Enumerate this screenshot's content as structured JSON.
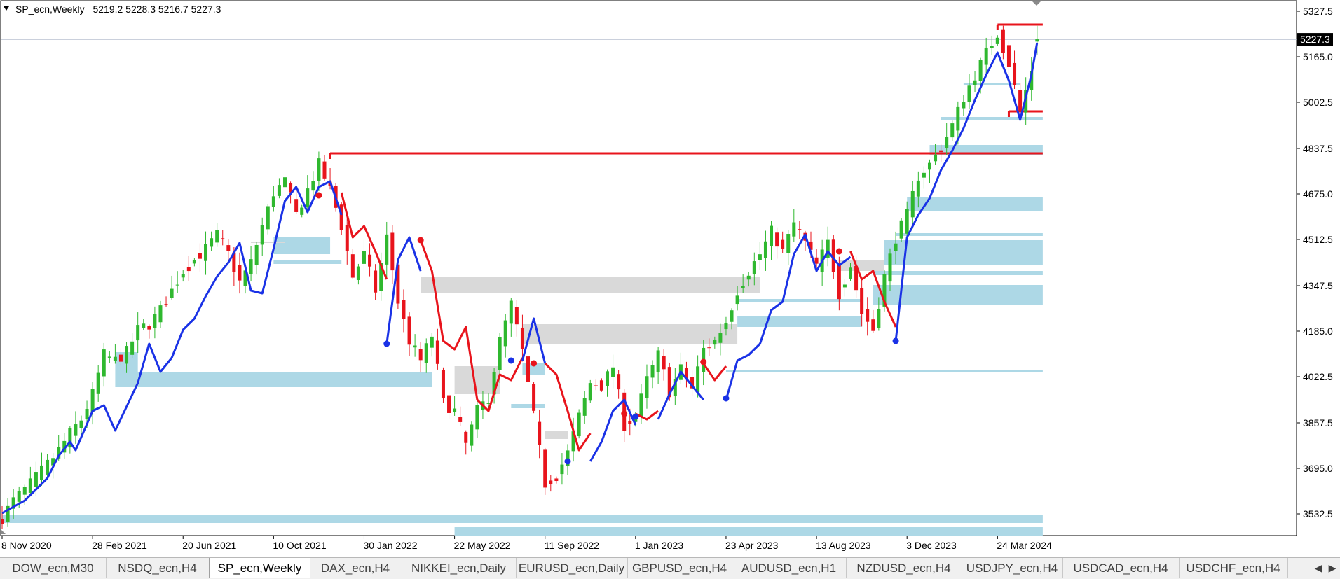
{
  "header": {
    "symbol_label": "SP_ecn,Weekly",
    "ohlc": "5219.2 5228.3 5216.7 5227.3"
  },
  "chart_data": {
    "type": "candlestick",
    "symbol": "SP_ecn",
    "timeframe": "Weekly",
    "ohlc_current": {
      "open": 5219.2,
      "high": 5228.3,
      "low": 5216.7,
      "close": 5227.3
    },
    "current_price_label": "5227.3",
    "ylim": [
      3455,
      5365
    ],
    "y_ticks": [
      5327.5,
      5165.0,
      5002.5,
      4837.5,
      4675.0,
      4512.5,
      4347.5,
      4185.0,
      4022.5,
      3857.5,
      3695.0,
      3532.5
    ],
    "y_tick_labels": [
      "5327.5",
      "5165.0",
      "5002.5",
      "4837.5",
      "4675.0",
      "4512.5",
      "4347.5",
      "4185.0",
      "4022.5",
      "3857.5",
      "3695.0",
      "3532.5"
    ],
    "x_tick_labels": [
      "8 Nov 2020",
      "28 Feb 2021",
      "20 Jun 2021",
      "10 Oct 2021",
      "30 Jan 2022",
      "22 May 2022",
      "11 Sep 2022",
      "1 Jan 2023",
      "23 Apr 2023",
      "13 Aug 2023",
      "3 Dec 2023",
      "24 Mar 2024"
    ],
    "x_tick_bar_index": [
      0,
      16,
      32,
      48,
      64,
      80,
      96,
      112,
      128,
      144,
      160,
      176
    ],
    "bar_count": 184,
    "grid": false,
    "colors": {
      "bull": "#2fb82f",
      "bear": "#e8141c",
      "line_up": "#1a32e6",
      "line_down": "#e8141c",
      "zone_blue": "#add8e6",
      "zone_gray": "#d9d9d9",
      "level_line": "#e8141c",
      "price_line": "#aab4c8"
    },
    "close_anchors": [
      [
        0,
        3520
      ],
      [
        2,
        3580
      ],
      [
        5,
        3640
      ],
      [
        8,
        3710
      ],
      [
        10,
        3760
      ],
      [
        12,
        3820
      ],
      [
        14,
        3870
      ],
      [
        16,
        3960
      ],
      [
        18,
        4100
      ],
      [
        20,
        4080
      ],
      [
        22,
        4110
      ],
      [
        24,
        4190
      ],
      [
        26,
        4210
      ],
      [
        28,
        4260
      ],
      [
        30,
        4330
      ],
      [
        32,
        4400
      ],
      [
        34,
        4440
      ],
      [
        36,
        4480
      ],
      [
        38,
        4530
      ],
      [
        40,
        4460
      ],
      [
        42,
        4360
      ],
      [
        44,
        4430
      ],
      [
        46,
        4560
      ],
      [
        48,
        4680
      ],
      [
        50,
        4720
      ],
      [
        52,
        4600
      ],
      [
        54,
        4690
      ],
      [
        56,
        4780
      ],
      [
        58,
        4690
      ],
      [
        60,
        4560
      ],
      [
        62,
        4380
      ],
      [
        64,
        4460
      ],
      [
        66,
        4330
      ],
      [
        68,
        4520
      ],
      [
        70,
        4290
      ],
      [
        72,
        4150
      ],
      [
        74,
        4080
      ],
      [
        76,
        4170
      ],
      [
        78,
        3930
      ],
      [
        80,
        3900
      ],
      [
        82,
        3780
      ],
      [
        84,
        3900
      ],
      [
        86,
        3950
      ],
      [
        88,
        4150
      ],
      [
        90,
        4280
      ],
      [
        92,
        4110
      ],
      [
        94,
        3880
      ],
      [
        96,
        3640
      ],
      [
        98,
        3670
      ],
      [
        100,
        3750
      ],
      [
        102,
        3880
      ],
      [
        104,
        4000
      ],
      [
        106,
        3990
      ],
      [
        108,
        4060
      ],
      [
        110,
        3850
      ],
      [
        112,
        3880
      ],
      [
        114,
        4010
      ],
      [
        116,
        4100
      ],
      [
        118,
        3970
      ],
      [
        120,
        4050
      ],
      [
        122,
        3980
      ],
      [
        124,
        4120
      ],
      [
        126,
        4150
      ],
      [
        128,
        4220
      ],
      [
        130,
        4330
      ],
      [
        132,
        4400
      ],
      [
        134,
        4460
      ],
      [
        136,
        4540
      ],
      [
        138,
        4470
      ],
      [
        140,
        4570
      ],
      [
        142,
        4500
      ],
      [
        144,
        4420
      ],
      [
        146,
        4500
      ],
      [
        148,
        4320
      ],
      [
        150,
        4420
      ],
      [
        152,
        4250
      ],
      [
        154,
        4190
      ],
      [
        156,
        4380
      ],
      [
        158,
        4520
      ],
      [
        160,
        4600
      ],
      [
        162,
        4740
      ],
      [
        164,
        4780
      ],
      [
        166,
        4840
      ],
      [
        168,
        4920
      ],
      [
        170,
        5020
      ],
      [
        172,
        5100
      ],
      [
        174,
        5180
      ],
      [
        176,
        5250
      ],
      [
        178,
        5140
      ],
      [
        180,
        4970
      ],
      [
        182,
        5120
      ],
      [
        183,
        5227.3
      ]
    ],
    "trend_line_segments": [
      {
        "color": "up",
        "points": [
          [
            0,
            3535
          ],
          [
            4,
            3580
          ],
          [
            8,
            3660
          ],
          [
            10,
            3740
          ],
          [
            12,
            3790
          ],
          [
            13,
            3760
          ],
          [
            16,
            3900
          ],
          [
            18,
            3920
          ],
          [
            20,
            3830
          ],
          [
            24,
            4000
          ],
          [
            26,
            4140
          ],
          [
            28,
            4040
          ],
          [
            30,
            4090
          ],
          [
            32,
            4190
          ],
          [
            34,
            4230
          ],
          [
            36,
            4310
          ],
          [
            38,
            4380
          ],
          [
            40,
            4430
          ],
          [
            42,
            4500
          ],
          [
            44,
            4330
          ],
          [
            46,
            4320
          ],
          [
            48,
            4480
          ],
          [
            50,
            4650
          ],
          [
            52,
            4700
          ],
          [
            54,
            4610
          ],
          [
            56,
            4700
          ],
          [
            58,
            4720
          ],
          [
            60,
            4600
          ]
        ]
      },
      {
        "color": "down",
        "points": [
          [
            60,
            4680
          ],
          [
            62,
            4520
          ],
          [
            64,
            4560
          ],
          [
            66,
            4470
          ],
          [
            68,
            4370
          ]
        ]
      },
      {
        "color": "up",
        "points": [
          [
            68,
            4140
          ],
          [
            70,
            4440
          ],
          [
            72,
            4520
          ],
          [
            74,
            4400
          ]
        ]
      },
      {
        "color": "down",
        "points": [
          [
            74,
            4510
          ],
          [
            76,
            4400
          ],
          [
            78,
            4150
          ],
          [
            80,
            4120
          ],
          [
            82,
            4200
          ],
          [
            84,
            3940
          ],
          [
            86,
            3900
          ],
          [
            88,
            4030
          ],
          [
            90,
            4010
          ],
          [
            92,
            4090
          ]
        ]
      },
      {
        "color": "up",
        "points": [
          [
            92,
            4080
          ],
          [
            94,
            4230
          ],
          [
            96,
            4070
          ]
        ]
      },
      {
        "color": "down",
        "points": [
          [
            96,
            4070
          ],
          [
            98,
            4030
          ],
          [
            100,
            3900
          ],
          [
            102,
            3760
          ],
          [
            104,
            3820
          ]
        ]
      },
      {
        "color": "up",
        "points": [
          [
            104,
            3720
          ],
          [
            106,
            3790
          ],
          [
            108,
            3900
          ],
          [
            110,
            3940
          ],
          [
            112,
            3850
          ]
        ]
      },
      {
        "color": "down",
        "points": [
          [
            112,
            3890
          ],
          [
            114,
            3870
          ],
          [
            116,
            3900
          ]
        ]
      },
      {
        "color": "up",
        "points": [
          [
            116,
            3870
          ],
          [
            118,
            3960
          ],
          [
            120,
            4040
          ],
          [
            122,
            3990
          ],
          [
            124,
            3940
          ]
        ]
      },
      {
        "color": "down",
        "points": [
          [
            124,
            4070
          ],
          [
            126,
            4010
          ],
          [
            128,
            4060
          ]
        ]
      },
      {
        "color": "up",
        "points": [
          [
            128,
            3940
          ],
          [
            130,
            4080
          ],
          [
            132,
            4100
          ],
          [
            134,
            4140
          ],
          [
            136,
            4260
          ],
          [
            138,
            4290
          ],
          [
            140,
            4460
          ],
          [
            142,
            4530
          ],
          [
            144,
            4400
          ],
          [
            146,
            4470
          ],
          [
            148,
            4420
          ],
          [
            150,
            4450
          ]
        ]
      },
      {
        "color": "down",
        "points": [
          [
            150,
            4470
          ],
          [
            152,
            4370
          ],
          [
            154,
            4400
          ],
          [
            156,
            4290
          ],
          [
            158,
            4200
          ]
        ]
      },
      {
        "color": "up",
        "points": [
          [
            158,
            4150
          ],
          [
            160,
            4520
          ],
          [
            162,
            4600
          ],
          [
            164,
            4660
          ],
          [
            166,
            4760
          ],
          [
            168,
            4830
          ],
          [
            170,
            4910
          ],
          [
            172,
            5010
          ],
          [
            174,
            5100
          ],
          [
            176,
            5180
          ],
          [
            178,
            5080
          ],
          [
            180,
            4940
          ],
          [
            182,
            5100
          ],
          [
            183,
            5215
          ]
        ]
      }
    ],
    "pivot_dots": [
      {
        "i": 56,
        "y": 4670,
        "color": "down"
      },
      {
        "i": 68,
        "y": 4140,
        "color": "up"
      },
      {
        "i": 74,
        "y": 4510,
        "color": "down"
      },
      {
        "i": 90,
        "y": 4080,
        "color": "up"
      },
      {
        "i": 94,
        "y": 4070,
        "color": "down"
      },
      {
        "i": 100,
        "y": 3720,
        "color": "up"
      },
      {
        "i": 110,
        "y": 3890,
        "color": "down"
      },
      {
        "i": 112,
        "y": 3880,
        "color": "up"
      },
      {
        "i": 124,
        "y": 4075,
        "color": "down"
      },
      {
        "i": 128,
        "y": 3945,
        "color": "up"
      },
      {
        "i": 148,
        "y": 4470,
        "color": "down"
      },
      {
        "i": 158,
        "y": 4150,
        "color": "up"
      }
    ],
    "demand_zones": [
      {
        "i0": 0,
        "i1": 184,
        "y0": 3530,
        "y1": 3500
      },
      {
        "i0": 80,
        "i1": 184,
        "y0": 3485,
        "y1": 3455
      },
      {
        "i0": 20,
        "i1": 76,
        "y0": 4040,
        "y1": 3985
      },
      {
        "i0": 20,
        "i1": 24,
        "y0": 4110,
        "y1": 4040
      },
      {
        "i0": 48,
        "i1": 58,
        "y0": 4520,
        "y1": 4460
      },
      {
        "i0": 48,
        "i1": 60,
        "y0": 4440,
        "y1": 4425
      },
      {
        "i0": 92,
        "i1": 96,
        "y0": 4070,
        "y1": 4030
      },
      {
        "i0": 90,
        "i1": 96,
        "y0": 3925,
        "y1": 3910
      },
      {
        "i0": 128,
        "i1": 184,
        "y0": 4045,
        "y1": 4040
      },
      {
        "i0": 130,
        "i1": 152,
        "y0": 4240,
        "y1": 4200
      },
      {
        "i0": 130,
        "i1": 152,
        "y0": 4300,
        "y1": 4290
      },
      {
        "i0": 154,
        "i1": 184,
        "y0": 4350,
        "y1": 4280
      },
      {
        "i0": 154,
        "i1": 184,
        "y0": 4400,
        "y1": 4385
      },
      {
        "i0": 156,
        "i1": 184,
        "y0": 4510,
        "y1": 4420
      },
      {
        "i0": 158,
        "i1": 184,
        "y0": 4535,
        "y1": 4525
      },
      {
        "i0": 160,
        "i1": 184,
        "y0": 4665,
        "y1": 4615
      },
      {
        "i0": 164,
        "i1": 184,
        "y0": 4850,
        "y1": 4815
      },
      {
        "i0": 166,
        "i1": 184,
        "y0": 4950,
        "y1": 4940
      },
      {
        "i0": 170,
        "i1": 180,
        "y0": 5070,
        "y1": 5065
      }
    ],
    "supply_zones": [
      {
        "i0": 74,
        "i1": 134,
        "y0": 4380,
        "y1": 4320
      },
      {
        "i0": 92,
        "i1": 130,
        "y0": 4210,
        "y1": 4140
      },
      {
        "i0": 80,
        "i1": 88,
        "y0": 4060,
        "y1": 3960
      },
      {
        "i0": 96,
        "i1": 100,
        "y0": 3830,
        "y1": 3800
      },
      {
        "i0": 148,
        "i1": 156,
        "y0": 4440,
        "y1": 4400
      },
      {
        "i0": 44,
        "i1": 50,
        "y0": 4505,
        "y1": 4500
      }
    ],
    "level_lines": [
      {
        "i0": 58,
        "i1": 184,
        "y": 4820
      },
      {
        "i0": 176,
        "i1": 184,
        "y": 5280
      },
      {
        "i0": 178,
        "i1": 184,
        "y": 4970
      }
    ]
  },
  "tabs": [
    {
      "label": "DOW_ecn,M30",
      "active": false
    },
    {
      "label": "NSDQ_ecn,H4",
      "active": false
    },
    {
      "label": "SP_ecn,Weekly",
      "active": true
    },
    {
      "label": "DAX_ecn,H4",
      "active": false
    },
    {
      "label": "NIKKEI_ecn,Daily",
      "active": false
    },
    {
      "label": "EURUSD_ecn,Daily",
      "active": false
    },
    {
      "label": "GBPUSD_ecn,H4",
      "active": false
    },
    {
      "label": "AUDUSD_ecn,H1",
      "active": false
    },
    {
      "label": "NZDUSD_ecn,H4",
      "active": false
    },
    {
      "label": "USDJPY_ecn,H4",
      "active": false
    },
    {
      "label": "USDCAD_ecn,H4",
      "active": false
    },
    {
      "label": "USDCHF_ecn,H4",
      "active": false
    }
  ],
  "tab_scroll": {
    "left_icon": "triangle-left-icon",
    "right_icon": "triangle-right-icon",
    "left_glyph": "◀",
    "right_glyph": "▶"
  }
}
